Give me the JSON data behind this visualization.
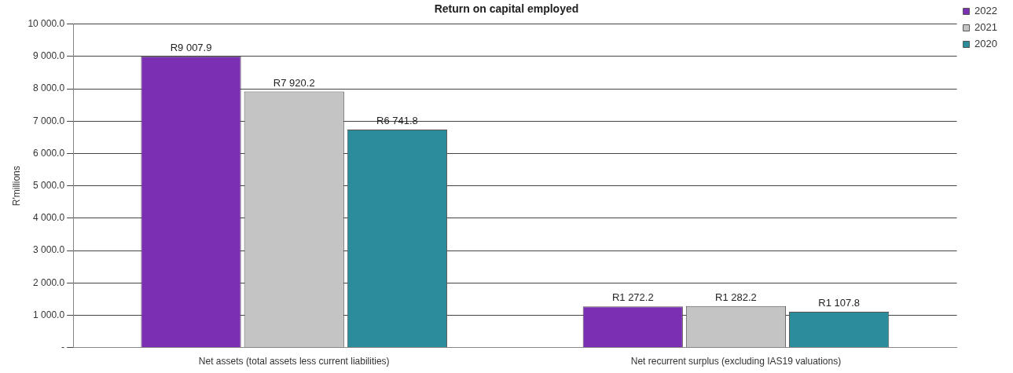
{
  "chart_data": {
    "type": "bar",
    "title": "Return on capital employed",
    "ylabel": "R'millions",
    "categories": [
      "Net assets (total assets less current liabilities)",
      "Net recurrent surplus (excluding IAS19 valuations)"
    ],
    "series": [
      {
        "name": "2022",
        "color": "#7b2fb3",
        "values": [
          9007.9,
          1272.2
        ],
        "value_labels": [
          "R9 007.9",
          "R1 272.2"
        ]
      },
      {
        "name": "2021",
        "color": "#c4c4c4",
        "values": [
          7920.2,
          1282.2
        ],
        "value_labels": [
          "R7 920.2",
          "R1 282.2"
        ]
      },
      {
        "name": "2020",
        "color": "#2b8c9c",
        "values": [
          6741.8,
          1107.8
        ],
        "value_labels": [
          "R6 741.8",
          "R1 107.8"
        ]
      }
    ],
    "ylim": [
      0,
      10000
    ],
    "yticks": [
      {
        "value": 0,
        "label": "-"
      },
      {
        "value": 1000,
        "label": "1 000.0"
      },
      {
        "value": 2000,
        "label": "2 000.0"
      },
      {
        "value": 3000,
        "label": "3 000.0"
      },
      {
        "value": 4000,
        "label": "4 000.0"
      },
      {
        "value": 5000,
        "label": "5 000.0"
      },
      {
        "value": 6000,
        "label": "6 000.0"
      },
      {
        "value": 7000,
        "label": "7 000.0"
      },
      {
        "value": 8000,
        "label": "8 000.0"
      },
      {
        "value": 9000,
        "label": "9 000.0"
      },
      {
        "value": 10000,
        "label": "10 000.0"
      }
    ],
    "grid": "y",
    "legend": "top right"
  }
}
